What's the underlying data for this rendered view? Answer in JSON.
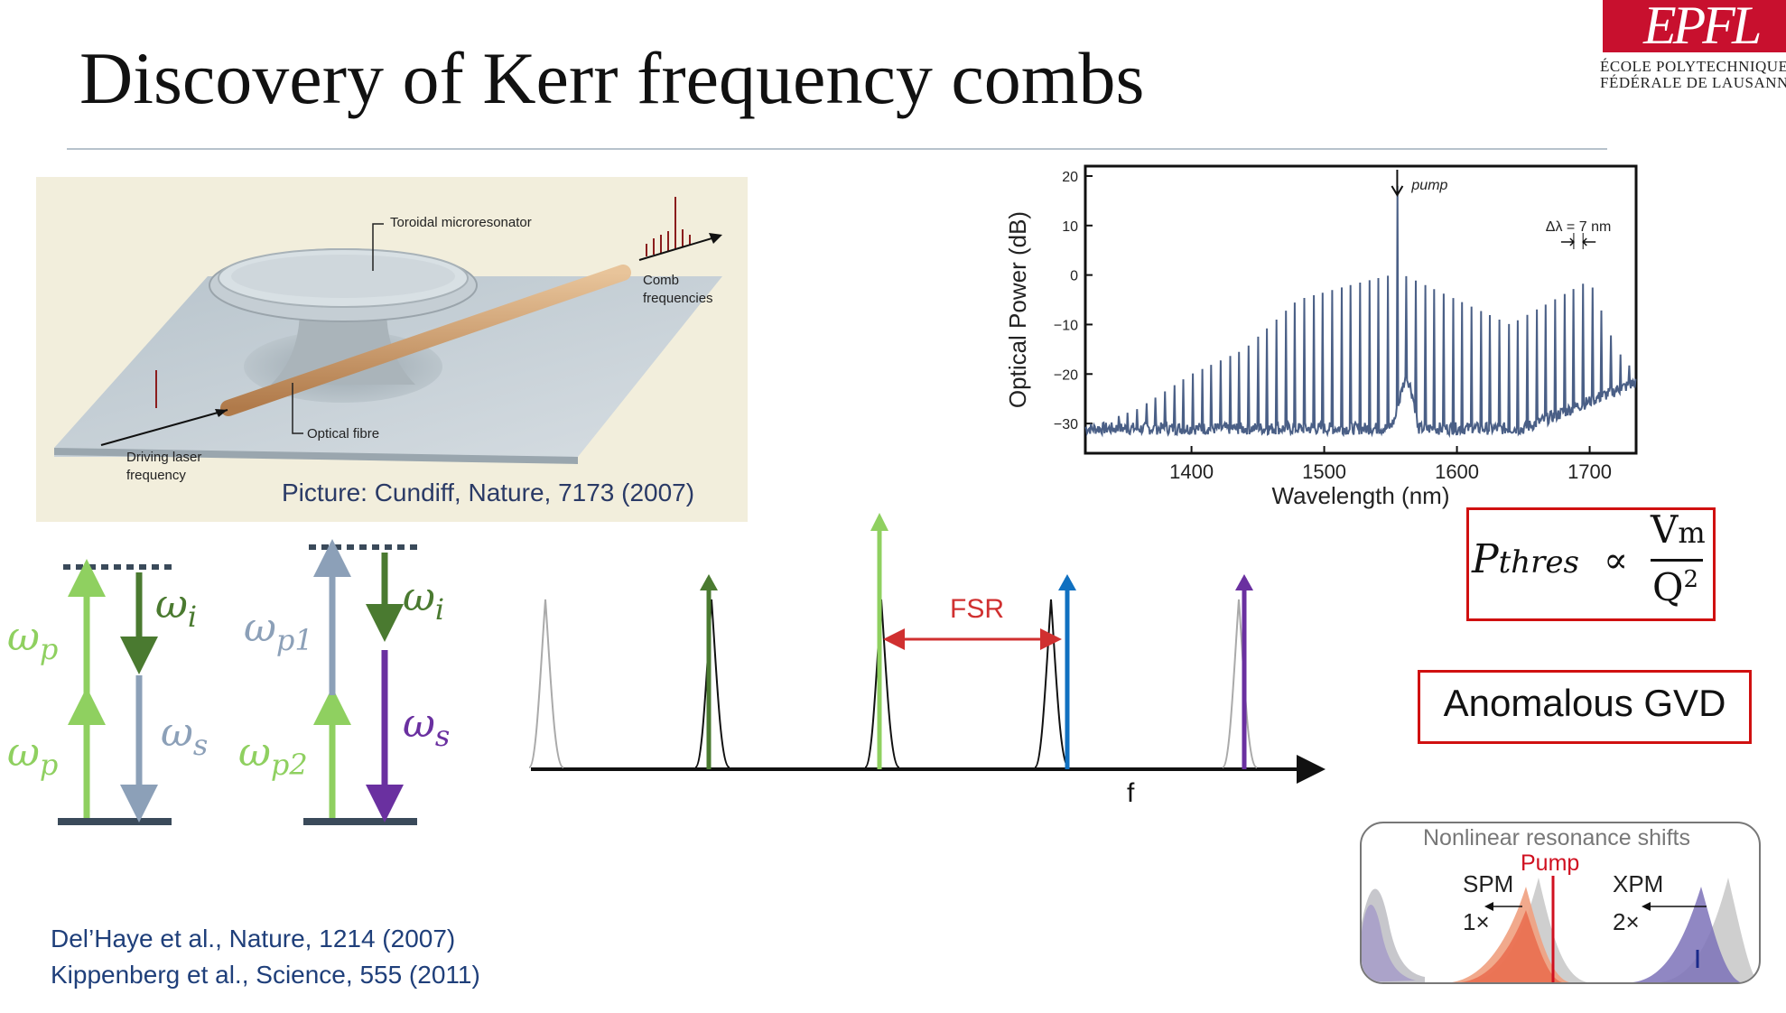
{
  "title": "Discovery of Kerr frequency combs",
  "logo": {
    "mark": "EPFL",
    "line1": "ÉCOLE POLYTECHNIQUE",
    "line2": "FÉDÉRALE DE LAUSANNE"
  },
  "figure_photo": {
    "labels": {
      "resonator": "Toroidal microresonator",
      "comb1": "Comb",
      "comb2": "frequencies",
      "fibre": "Optical fibre",
      "laser1": "Driving laser",
      "laser2": "frequency"
    },
    "credit": "Picture: Cundiff, Nature, 7173 (2007)"
  },
  "chart_data": {
    "type": "line",
    "xlabel": "Wavelength (nm)",
    "ylabel": "Optical Power (dB)",
    "xlim": [
      1320,
      1735
    ],
    "ylim": [
      -36,
      22
    ],
    "xticks": [
      1400,
      1500,
      1600,
      1700
    ],
    "yticks": [
      20,
      10,
      0,
      -10,
      -20,
      -30
    ],
    "annotations": {
      "pump": "pump",
      "spacing": "Δλ = 7 nm"
    },
    "series": [
      {
        "color": "#4a5f86",
        "noise_floor_db": -31,
        "pump_nm": 1555,
        "pump_db": 18,
        "line_spacing_nm": 7,
        "envelope": {
          "x": [
            1320,
            1330,
            1360,
            1400,
            1440,
            1480,
            1520,
            1550,
            1555,
            1560,
            1600,
            1640,
            1680,
            1700,
            1720,
            1735
          ],
          "y": [
            -33,
            -30,
            -27,
            -20,
            -15,
            -5,
            -2,
            0,
            18,
            0,
            -5,
            -10,
            -4,
            -1,
            -15,
            -20
          ]
        }
      }
    ]
  },
  "pthres": {
    "lhs": "P",
    "sub": "thres",
    "prop": "∝",
    "num": "V",
    "num_sub": "m",
    "den": "Q",
    "den_sup": "2"
  },
  "gvd": "Anomalous GVD",
  "energy_levels": {
    "wp": "ω",
    "wp_sub": "p",
    "wi": "ω",
    "wi_sub": "i",
    "ws": "ω",
    "ws_sub": "s",
    "wp1_sub": "p1",
    "wp2_sub": "p2"
  },
  "comb_diagram": {
    "fsr": "FSR",
    "axis": "f"
  },
  "inset": {
    "title": "Nonlinear resonance shifts",
    "pump": "Pump",
    "spm": "SPM",
    "spm_mult": "1×",
    "xpm": "XPM",
    "xpm_mult": "2×"
  },
  "references": [
    "Del’Haye et al., Nature, 1214 (2007)",
    "Kippenberg et al., Science, 555 (2011)"
  ],
  "colors": {
    "green_light": "#8fd060",
    "green_dark": "#4a7a30",
    "slate": "#8ca0b8",
    "purple": "#6a30a0",
    "blue": "#1070c0",
    "red": "#d03030",
    "gray": "#aaaaaa"
  }
}
